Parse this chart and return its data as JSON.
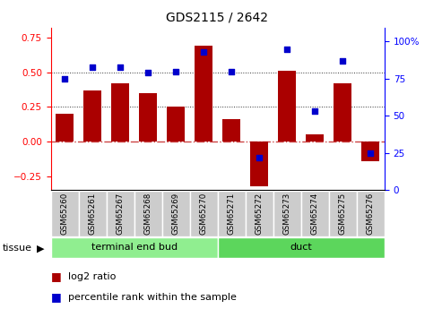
{
  "title": "GDS2115 / 2642",
  "samples": [
    "GSM65260",
    "GSM65261",
    "GSM65267",
    "GSM65268",
    "GSM65269",
    "GSM65270",
    "GSM65271",
    "GSM65272",
    "GSM65273",
    "GSM65274",
    "GSM65275",
    "GSM65276"
  ],
  "log2_ratio": [
    0.2,
    0.37,
    0.42,
    0.35,
    0.25,
    0.69,
    0.16,
    -0.32,
    0.51,
    0.05,
    0.42,
    -0.14
  ],
  "percentile_rank": [
    75,
    83,
    83,
    79,
    80,
    93,
    80,
    22,
    95,
    53,
    87,
    25
  ],
  "groups": [
    {
      "label": "terminal end bud",
      "start": 0,
      "end": 6,
      "color": "#90EE90"
    },
    {
      "label": "duct",
      "start": 6,
      "end": 12,
      "color": "#5CD65C"
    }
  ],
  "bar_color": "#AA0000",
  "dot_color": "#0000CC",
  "left_ylim": [
    -0.35,
    0.82
  ],
  "right_ylim": [
    0,
    109.3
  ],
  "left_yticks": [
    -0.25,
    0.0,
    0.25,
    0.5,
    0.75
  ],
  "right_yticks": [
    0,
    25,
    50,
    75,
    100
  ],
  "hline_0_color": "#CC4444",
  "hline_dots_color": "#333333",
  "sample_box_color": "#CCCCCC",
  "tissue_label": "tissue",
  "legend_log2": "log2 ratio",
  "legend_pct": "percentile rank within the sample"
}
